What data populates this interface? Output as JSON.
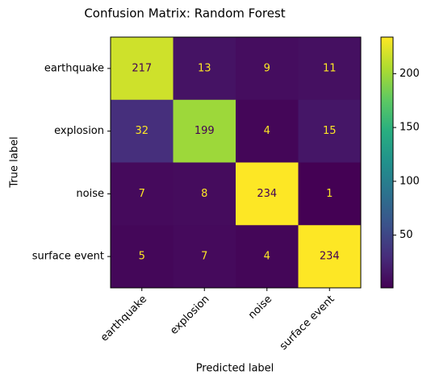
{
  "chart_data": {
    "type": "heatmap",
    "title": "Confusion Matrix: Random Forest",
    "xlabel": "Predicted label",
    "ylabel": "True label",
    "categories": [
      "earthquake",
      "explosion",
      "noise",
      "surface event"
    ],
    "values": [
      [
        217,
        13,
        9,
        11
      ],
      [
        32,
        199,
        4,
        15
      ],
      [
        7,
        8,
        234,
        1
      ],
      [
        5,
        7,
        4,
        234
      ]
    ],
    "colormap": "viridis",
    "zlim": [
      1,
      234
    ],
    "zticks": [
      50,
      100,
      150,
      200
    ]
  }
}
